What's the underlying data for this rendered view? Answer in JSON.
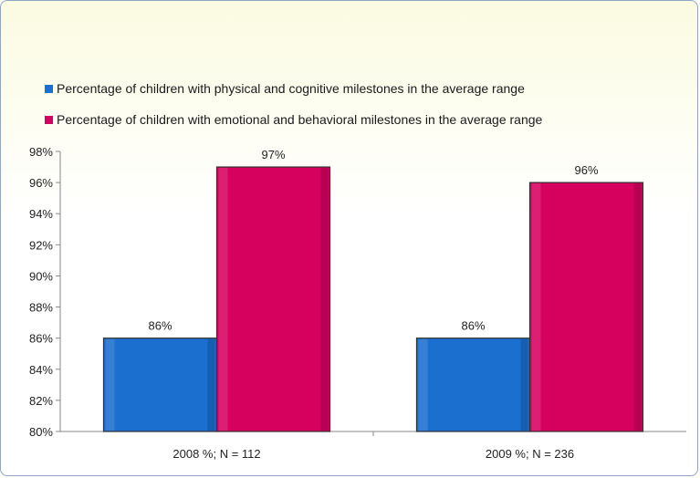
{
  "chart_data": {
    "type": "bar",
    "categories": [
      "2008 %; N = 112",
      "2009 %; N = 236"
    ],
    "series": [
      {
        "name": "Percentage of children with physical and cognitive milestones in the average range",
        "color": "#1a6fcf",
        "values": [
          86,
          86
        ],
        "labels": [
          "86%",
          "86%"
        ]
      },
      {
        "name": "Percentage of children with emotional and behavioral milestones in the average range",
        "color": "#d6005f",
        "values": [
          97,
          96
        ],
        "labels": [
          "97%",
          "96%"
        ]
      }
    ],
    "ylim": [
      80,
      98
    ],
    "yticks": [
      80,
      82,
      84,
      86,
      88,
      90,
      92,
      94,
      96,
      98
    ],
    "ytick_labels": [
      "80%",
      "82%",
      "84%",
      "86%",
      "88%",
      "90%",
      "92%",
      "94%",
      "96%",
      "98%"
    ],
    "legend_position": "top",
    "grid": false
  }
}
